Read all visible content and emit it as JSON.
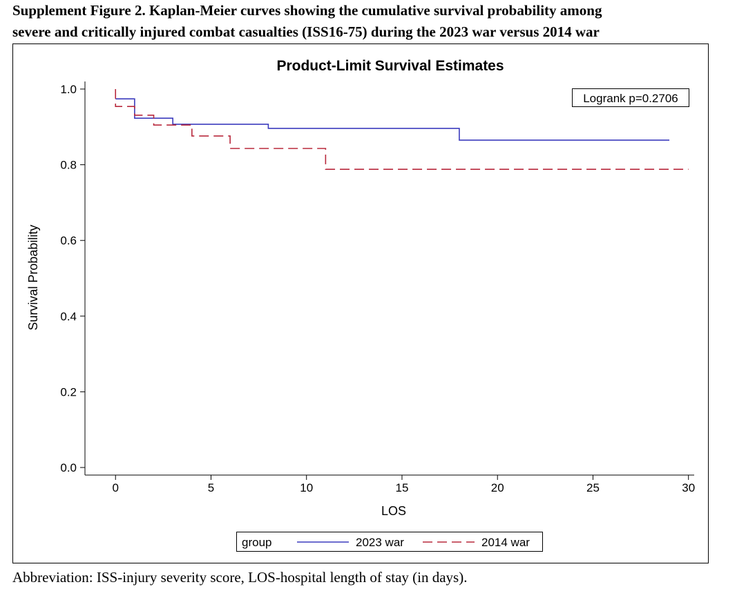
{
  "caption": {
    "line1": "Supplement Figure 2. Kaplan-Meier curves showing the cumulative survival probability among",
    "line2": "severe and critically injured combat casualties (ISS16-75) during the 2023 war versus 2014 war",
    "footnote": "Abbreviation: ISS-injury severity score, LOS-hospital length of stay (in days)."
  },
  "chart_data": {
    "type": "step",
    "title": "Product-Limit Survival Estimates",
    "x_label": "LOS",
    "y_label": "Survival Probability",
    "annotation": "Logrank p=0.2706",
    "legend_title": "group",
    "series": [
      {
        "name": "2023 war",
        "color": "#3b3bbd",
        "dash": false,
        "x": [
          0,
          1,
          3,
          8,
          18,
          29
        ],
        "values": [
          0.974,
          0.923,
          0.907,
          0.896,
          0.865,
          0.865
        ]
      },
      {
        "name": "2014 war",
        "color": "#b8283c",
        "dash": true,
        "x": [
          0,
          0,
          1,
          2,
          4,
          6,
          11,
          30
        ],
        "values": [
          1.0,
          0.954,
          0.931,
          0.905,
          0.876,
          0.843,
          0.788,
          0.788
        ]
      }
    ],
    "xlim": [
      -1.6,
      30.3
    ],
    "ylim": [
      -0.02,
      1.02
    ],
    "xticks": [
      0,
      5,
      10,
      15,
      20,
      25,
      30
    ],
    "yticks": [
      {
        "value": 0,
        "label": "0.0"
      },
      0.2,
      0.4,
      0.6,
      0.8,
      {
        "value": 1,
        "label": "1.0"
      }
    ]
  }
}
